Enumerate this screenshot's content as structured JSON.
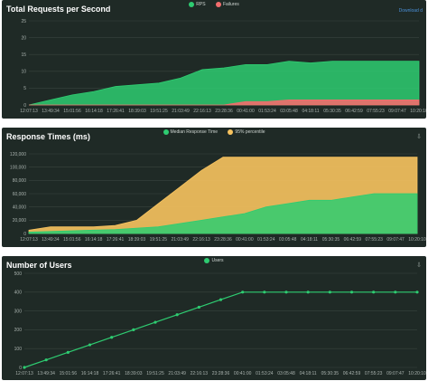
{
  "colors": {
    "panel_bg": "#1f2a26",
    "grid": "#39443f",
    "rps": "#2ecc71",
    "failures": "#f26d6d",
    "median": "#2ecc71",
    "p95": "#f7c35f",
    "users": "#2ecc71"
  },
  "chart_data": [
    {
      "type": "area",
      "title": "Total Requests per Second",
      "download_label": "Download d",
      "legend": [
        "RPS",
        "Failures"
      ],
      "x_ticks": [
        "12:07:13",
        "13:49:34",
        "15:01:56",
        "16:14:18",
        "17:26:41",
        "18:39:03",
        "19:51:25",
        "21:03:49",
        "22:16:13",
        "23:28:36",
        "00:41:00",
        "01:53:24",
        "03:05:48",
        "04:18:11",
        "05:30:35",
        "06:42:59",
        "07:55:23",
        "09:07:47",
        "10:20:10"
      ],
      "y_ticks": [
        0,
        5,
        10,
        15,
        20,
        25
      ],
      "ylim": [
        0,
        25
      ],
      "series": [
        {
          "name": "RPS",
          "values": [
            0,
            1.5,
            3,
            4,
            5.5,
            6,
            6.5,
            8,
            10.5,
            11,
            12,
            12,
            13,
            12.5,
            13,
            13,
            13,
            13,
            13
          ]
        },
        {
          "name": "Failures",
          "values": [
            0,
            0,
            0,
            0,
            0,
            0,
            0,
            0,
            0,
            0,
            1,
            1,
            1.5,
            1.5,
            1.5,
            1.5,
            1.5,
            1.5,
            1.5
          ]
        }
      ]
    },
    {
      "type": "area",
      "title": "Response Times (ms)",
      "legend": [
        "Median Response Time",
        "95% percentile"
      ],
      "x_ticks": [
        "12:07:13",
        "13:49:34",
        "15:01:56",
        "16:14:18",
        "17:26:41",
        "18:39:03",
        "19:51:25",
        "21:03:49",
        "22:16:13",
        "23:28:36",
        "00:41:00",
        "01:53:24",
        "03:05:48",
        "04:18:11",
        "05:30:35",
        "06:42:59",
        "07:55:23",
        "09:07:47",
        "10:20:10"
      ],
      "y_ticks": [
        0,
        20000,
        40000,
        60000,
        80000,
        100000,
        120000
      ],
      "y_tick_labels": [
        "0",
        "20,000",
        "40,000",
        "60,000",
        "80,000",
        "100,000",
        "120,000"
      ],
      "ylim": [
        0,
        120000
      ],
      "series": [
        {
          "name": "Median Response Time",
          "values": [
            2000,
            3000,
            4000,
            5000,
            6000,
            8000,
            10000,
            15000,
            20000,
            25000,
            30000,
            40000,
            45000,
            50000,
            50000,
            55000,
            60000,
            60000,
            60000
          ]
        },
        {
          "name": "95% percentile",
          "values": [
            5000,
            10000,
            10000,
            10000,
            12000,
            20000,
            45000,
            70000,
            95000,
            115000,
            115000,
            115000,
            115000,
            115000,
            115000,
            115000,
            115000,
            115000,
            115000
          ]
        }
      ]
    },
    {
      "type": "line",
      "title": "Number of Users",
      "legend": [
        "Users"
      ],
      "x_ticks": [
        "12:07:13",
        "13:49:34",
        "15:01:56",
        "16:14:18",
        "17:26:41",
        "18:39:03",
        "19:51:25",
        "21:03:49",
        "22:16:13",
        "23:28:36",
        "00:41:00",
        "01:53:24",
        "03:05:48",
        "04:18:11",
        "05:30:35",
        "06:42:59",
        "07:55:23",
        "09:07:47",
        "10:20:10"
      ],
      "y_ticks": [
        0,
        100,
        200,
        300,
        400,
        500
      ],
      "ylim": [
        0,
        500
      ],
      "series": [
        {
          "name": "Users",
          "values": [
            0,
            40,
            80,
            120,
            160,
            200,
            240,
            280,
            320,
            360,
            400,
            400,
            400,
            400,
            400,
            400,
            400,
            400,
            400
          ]
        }
      ]
    }
  ]
}
